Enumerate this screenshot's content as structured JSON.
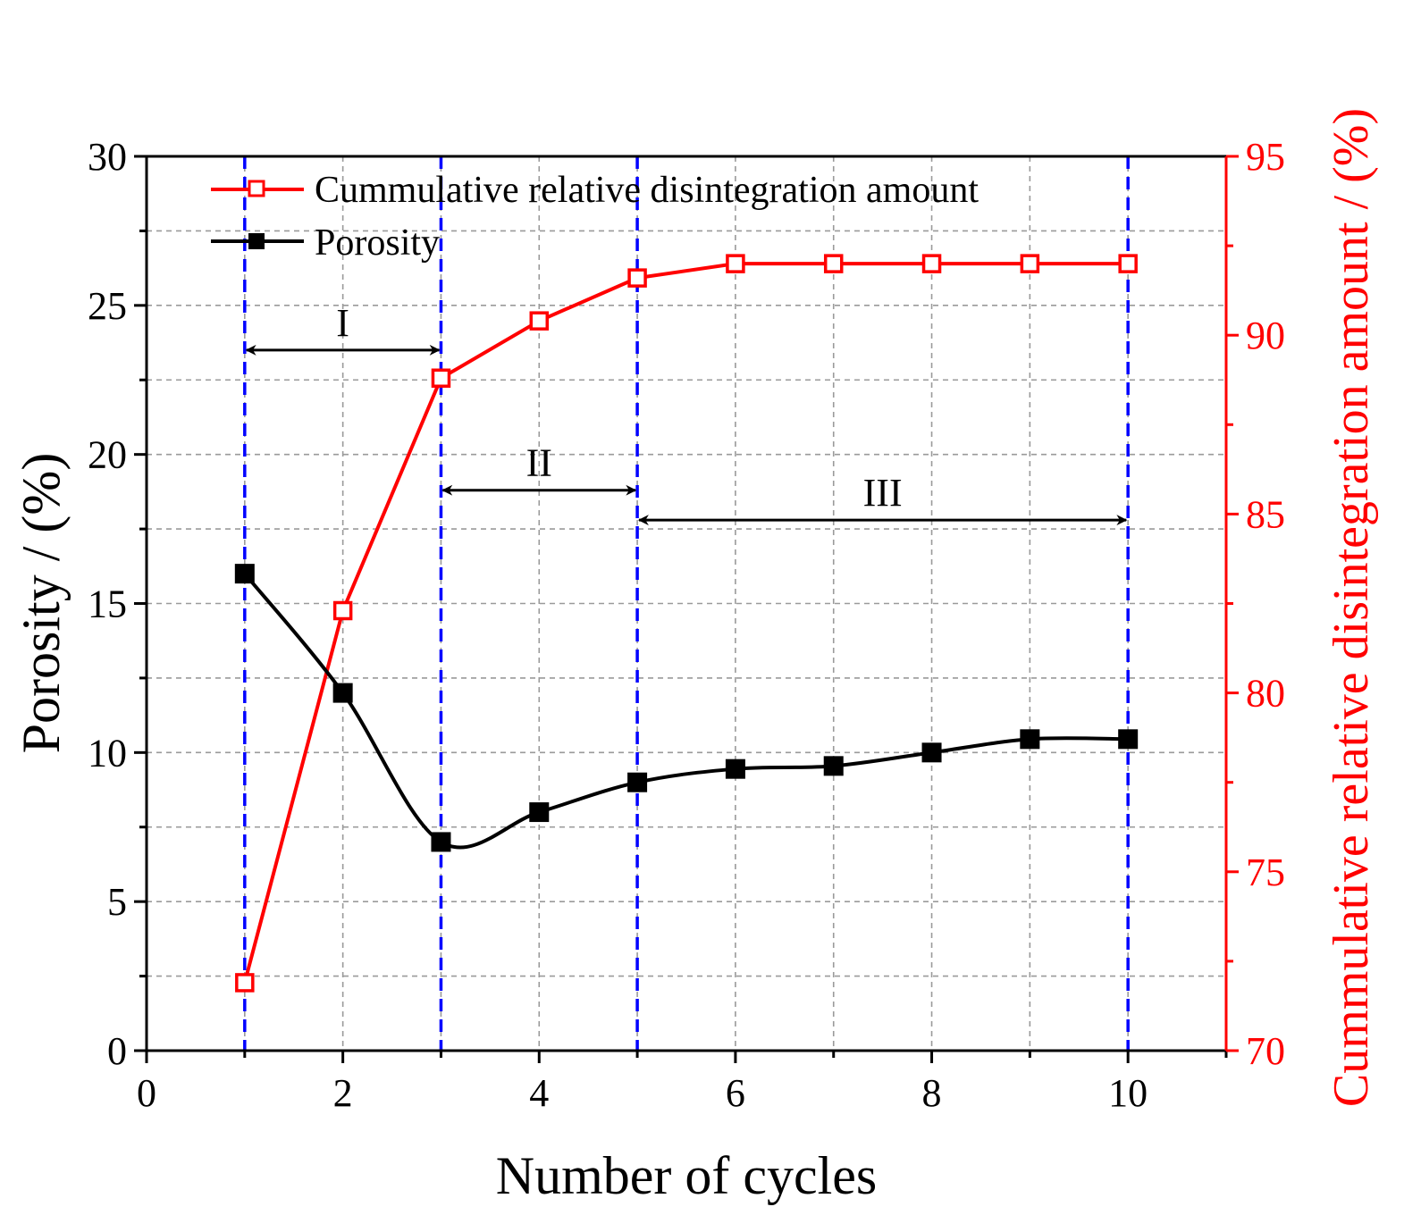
{
  "chart_data": {
    "type": "line",
    "xlabel": "Number of cycles",
    "ylabel_left": "Porosity / (%)",
    "ylabel_right": "Cummulative relative disintegration amount / (%)",
    "xlim": [
      0,
      11
    ],
    "ylim_left": [
      0,
      30
    ],
    "ylim_right": [
      70,
      95
    ],
    "x_ticks": [
      0,
      2,
      4,
      6,
      8,
      10
    ],
    "x_minor_ticks": [
      1,
      3,
      5,
      7,
      9,
      11
    ],
    "y_left_ticks": [
      0,
      5,
      10,
      15,
      20,
      25,
      30
    ],
    "y_left_minor_ticks": [
      2.5,
      7.5,
      12.5,
      17.5,
      22.5,
      27.5
    ],
    "y_right_ticks": [
      70,
      75,
      80,
      85,
      90,
      95
    ],
    "y_right_minor_ticks": [
      72.5,
      77.5,
      82.5,
      87.5,
      92.5
    ],
    "grid": true,
    "legend_position": "top-left",
    "series": [
      {
        "name": "Cummulative relative disintegration amount",
        "axis": "right",
        "color": "#ff0000",
        "marker": "open-square",
        "line": "straight",
        "x": [
          1,
          2,
          3,
          4,
          5,
          6,
          7,
          8,
          9,
          10
        ],
        "values": [
          71.9,
          82.3,
          88.8,
          90.4,
          91.6,
          92.0,
          92.0,
          92.0,
          92.0,
          92.0
        ]
      },
      {
        "name": "Porosity",
        "axis": "left",
        "color": "#000000",
        "marker": "filled-square",
        "line": "smooth",
        "x": [
          1,
          2,
          3,
          4,
          5,
          6,
          7,
          8,
          9,
          10
        ],
        "values": [
          16.0,
          12.0,
          7.0,
          8.0,
          9.0,
          9.45,
          9.55,
          10.0,
          10.45,
          10.45
        ]
      }
    ],
    "stage_lines": {
      "color": "#0000ff",
      "x": [
        1,
        3,
        5,
        10
      ]
    },
    "stages": [
      {
        "label": "I",
        "x_start": 1,
        "x_end": 3,
        "y": 23.5
      },
      {
        "label": "II",
        "x_start": 3,
        "x_end": 5,
        "y": 18.8
      },
      {
        "label": "III",
        "x_start": 5,
        "x_end": 10,
        "y": 17.8
      }
    ]
  }
}
